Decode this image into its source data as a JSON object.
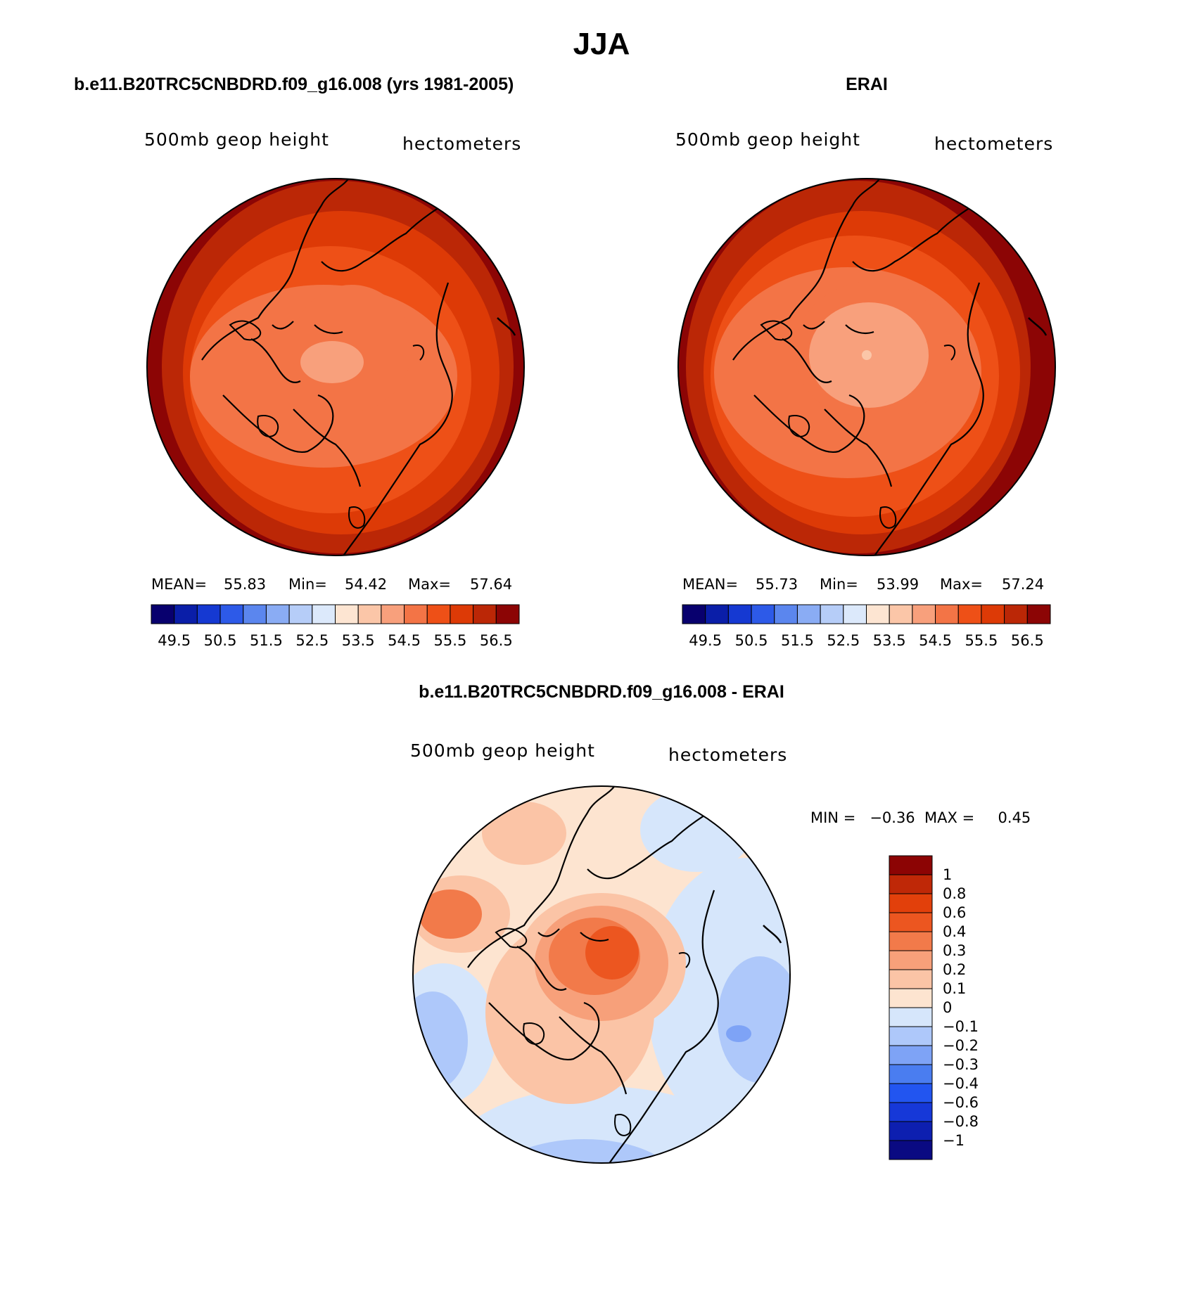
{
  "page": {
    "title": "JJA"
  },
  "panels": [
    {
      "id": "model",
      "panel_title": "b.e11.B20TRC5CNBDRD.f09_g16.008 (yrs 1981-2005)",
      "field_label": "500mb geop height",
      "units_label": "hectometers",
      "stats": {
        "mean_label": "MEAN=",
        "mean": "55.83",
        "min_label": "Min=",
        "min": "54.42",
        "max_label": "Max=",
        "max": "57.64"
      },
      "colorbar_ticks": [
        "49.5",
        "50.5",
        "51.5",
        "52.5",
        "53.5",
        "54.5",
        "55.5",
        "56.5"
      ]
    },
    {
      "id": "obs",
      "panel_title": "ERAI",
      "field_label": "500mb geop height",
      "units_label": "hectometers",
      "stats": {
        "mean_label": "MEAN=",
        "mean": "55.73",
        "min_label": "Min=",
        "min": "53.99",
        "max_label": "Max=",
        "max": "57.24"
      },
      "colorbar_ticks": [
        "49.5",
        "50.5",
        "51.5",
        "52.5",
        "53.5",
        "54.5",
        "55.5",
        "56.5"
      ]
    }
  ],
  "diff_panel": {
    "panel_title": "b.e11.B20TRC5CNBDRD.f09_g16.008 - ERAI",
    "field_label": "500mb geop height",
    "units_label": "hectometers",
    "minmax_text": "MIN =   −0.36  MAX =     0.45",
    "colorbar_ticks": [
      "1",
      "0.8",
      "0.6",
      "0.4",
      "0.3",
      "0.2",
      "0.1",
      "0",
      "−0.1",
      "−0.2",
      "−0.3",
      "−0.4",
      "−0.6",
      "−0.8",
      "−1"
    ]
  },
  "colors": {
    "abs_scale": [
      "#08006e",
      "#0a1ea8",
      "#1539d2",
      "#2d5ae8",
      "#5b86ee",
      "#8aacf4",
      "#b6cdf8",
      "#dce9fb",
      "#fde5d2",
      "#fbc6a8",
      "#f8a07c",
      "#f37446",
      "#ee5017",
      "#dd3a06",
      "#bb2706",
      "#8c0505"
    ],
    "diff_scale": [
      "#0a0a82",
      "#0d1fb0",
      "#1638d8",
      "#2255f0",
      "#4a7df0",
      "#7ea3f6",
      "#aec8fa",
      "#d6e6fb",
      "#fde4d0",
      "#fbc4a6",
      "#f7a07a",
      "#f27a4a",
      "#ec5620",
      "#e2400b",
      "#bf2807",
      "#8c0404"
    ]
  }
}
